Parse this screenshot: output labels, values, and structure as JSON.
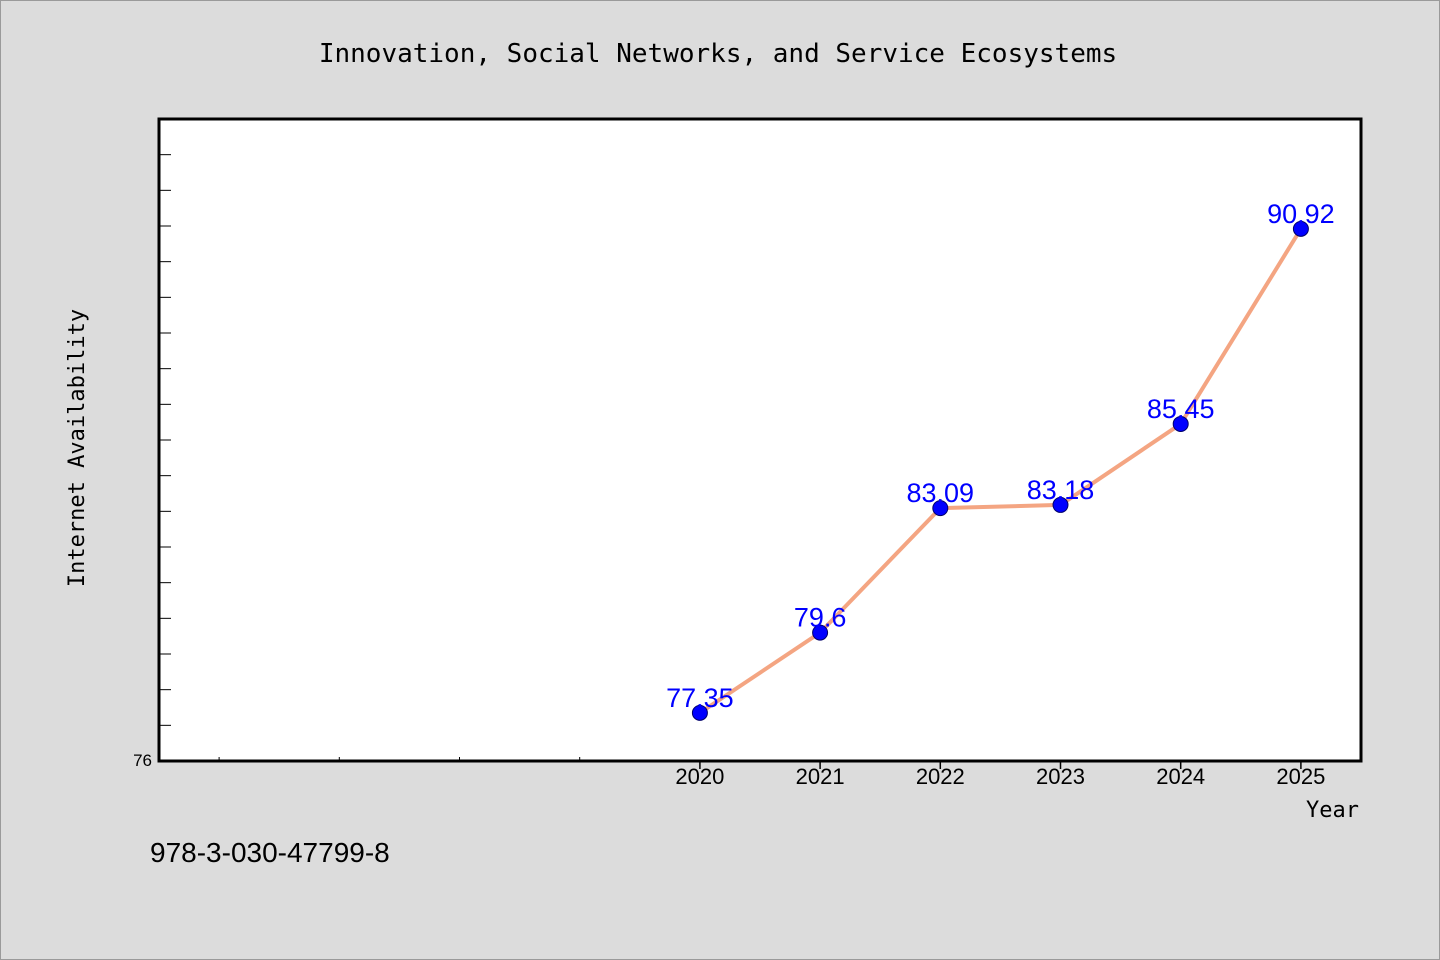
{
  "chart_data": {
    "type": "line",
    "title": "Innovation, Social Networks, and Service Ecosystems",
    "xlabel": "Year",
    "ylabel": "Internet Availability",
    "categories": [
      "2020",
      "2021",
      "2022",
      "2023",
      "2024",
      "2025"
    ],
    "series": [
      {
        "values": [
          77.35,
          79.6,
          83.09,
          83.18,
          85.45,
          90.92
        ]
      }
    ],
    "data_labels": [
      "77.35",
      "79.6",
      "83.09",
      "83.18",
      "85.45",
      "90.92"
    ],
    "ylim": [
      76,
      94
    ],
    "ytick_labels": [
      "76"
    ],
    "grid": false,
    "line_color": "#f4a582",
    "marker_color": "#0000ff",
    "label_color": "#0000ff",
    "plot_background": "#ffffff",
    "figure_background": "#dcdcdc"
  },
  "footnote": "978-3-030-47799-8"
}
